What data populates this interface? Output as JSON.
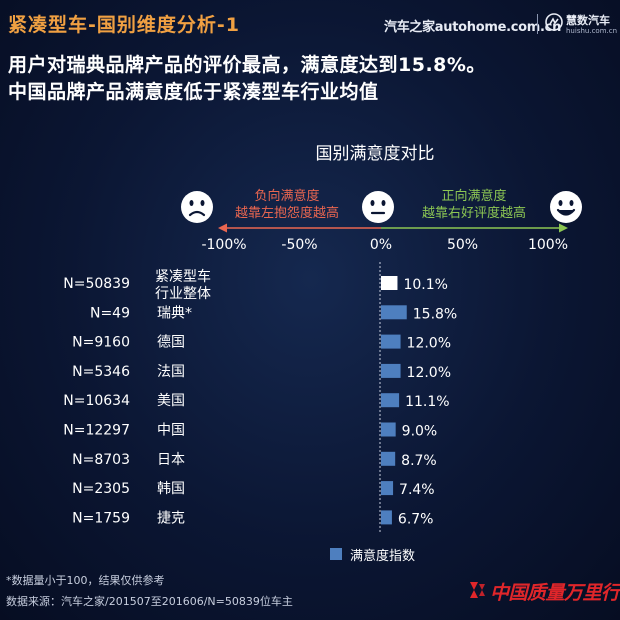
{
  "header": {
    "title": "紧凑型车-国别维度分析-1",
    "site": "汽车之家autohome.com.cn",
    "brand_name": "慧数汽车",
    "brand_domain": "huishu.com.cn"
  },
  "headline": {
    "line1": "用户对瑞典品牌产品的评价最高，满意度达到15.8%。",
    "line2": "中国品牌产品满意度低于紧凑型车行业均值"
  },
  "colors": {
    "accent": "#f0a042",
    "bar": "#4e7fbf",
    "highlight_bar": "#ffffff",
    "negative_label": "#ea6650",
    "positive_label": "#8cc653",
    "stamp_red": "#e0262a"
  },
  "icons": [
    "frown-face-icon",
    "neutral-face-icon",
    "smile-face-icon"
  ],
  "chart_data": {
    "type": "bar",
    "orientation": "horizontal",
    "title": "国别满意度对比",
    "scale": {
      "negative_label": "负向满意度",
      "negative_note": "越靠左抱怨度越高",
      "positive_label": "正向满意度",
      "positive_note": "越靠右好评度越高",
      "ticks": [
        "-100%",
        "-50%",
        "0%",
        "50%",
        "100%"
      ],
      "tick_values": [
        -100,
        -50,
        0,
        50,
        100
      ]
    },
    "xlim": [
      -100,
      100
    ],
    "categories": [
      "紧凑型车\n行业整体",
      "瑞典*",
      "德国",
      "法国",
      "美国",
      "中国",
      "日本",
      "韩国",
      "捷克"
    ],
    "sample_sizes": [
      "N=50839",
      "N=49",
      "N=9160",
      "N=5346",
      "N=10634",
      "N=12297",
      "N=8703",
      "N=2305",
      "N=1759"
    ],
    "series": [
      {
        "name": "满意度指数",
        "values": [
          10.1,
          15.8,
          12.0,
          12.0,
          11.1,
          9.0,
          8.7,
          7.4,
          6.7
        ],
        "value_labels": [
          "10.1%",
          "15.8%",
          "12.0%",
          "12.0%",
          "11.1%",
          "9.0%",
          "8.7%",
          "7.4%",
          "6.7%"
        ]
      }
    ],
    "highlight_index": 0,
    "legend": "bottom-center",
    "grid": false
  },
  "footnotes": {
    "line1": "*数据量小于100，结果仅供参考",
    "line2": "数据来源：汽车之家/201507至201606/N=50839位车主"
  },
  "stamp_text": "中国质量万里行"
}
